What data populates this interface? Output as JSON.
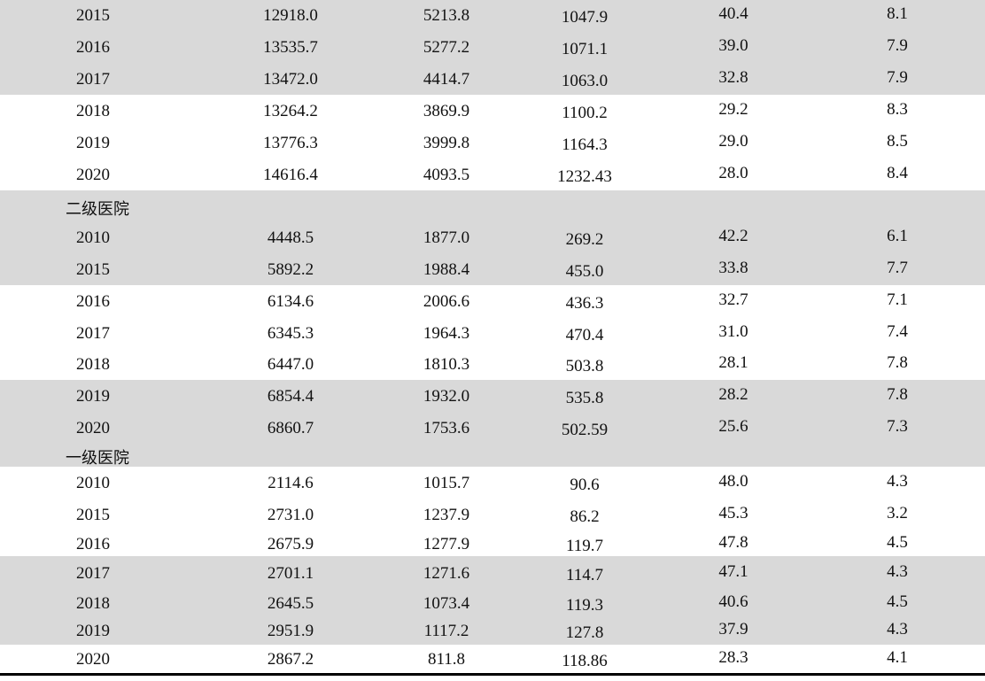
{
  "table": {
    "rows": [
      [
        "2015",
        "12918.0",
        "5213.8",
        "1047.9",
        "40.4",
        "8.1"
      ],
      [
        "2016",
        "13535.7",
        "5277.2",
        "1071.1",
        "39.0",
        "7.9"
      ],
      [
        "2017",
        "13472.0",
        "4414.7",
        "1063.0",
        "32.8",
        "7.9"
      ],
      [
        "2018",
        "13264.2",
        "3869.9",
        "1100.2",
        "29.2",
        "8.3"
      ],
      [
        "2019",
        "13776.3",
        "3999.8",
        "1164.3",
        "29.0",
        "8.5"
      ],
      [
        "2020",
        "14616.4",
        "4093.5",
        "1232.43",
        "28.0",
        "8.4"
      ],
      [
        "二级医院"
      ],
      [
        "2010",
        "4448.5",
        "1877.0",
        "269.2",
        "42.2",
        "6.1"
      ],
      [
        "2015",
        "5892.2",
        "1988.4",
        "455.0",
        "33.8",
        "7.7"
      ],
      [
        "2016",
        "6134.6",
        "2006.6",
        "436.3",
        "32.7",
        "7.1"
      ],
      [
        "2017",
        "6345.3",
        "1964.3",
        "470.4",
        "31.0",
        "7.4"
      ],
      [
        "2018",
        "6447.0",
        "1810.3",
        "503.8",
        "28.1",
        "7.8"
      ],
      [
        "2019",
        "6854.4",
        "1932.0",
        "535.8",
        "28.2",
        "7.8"
      ],
      [
        "2020",
        "6860.7",
        "1753.6",
        "502.59",
        "25.6",
        "7.3"
      ],
      [
        "一级医院"
      ],
      [
        "2010",
        "2114.6",
        "1015.7",
        "90.6",
        "48.0",
        "4.3"
      ],
      [
        "2015",
        "2731.0",
        "1237.9",
        "86.2",
        "45.3",
        "3.2"
      ],
      [
        "2016",
        "2675.9",
        "1277.9",
        "119.7",
        "47.8",
        "4.5"
      ],
      [
        "2017",
        "2701.1",
        "1271.6",
        "114.7",
        "47.1",
        "4.3"
      ],
      [
        "2018",
        "2645.5",
        "1073.4",
        "119.3",
        "40.6",
        "4.5"
      ],
      [
        "2019",
        "2951.9",
        "1117.2",
        "127.8",
        "37.9",
        "4.3"
      ],
      [
        "2020",
        "2867.2",
        "811.8",
        "118.86",
        "28.3",
        "4.1"
      ]
    ]
  }
}
